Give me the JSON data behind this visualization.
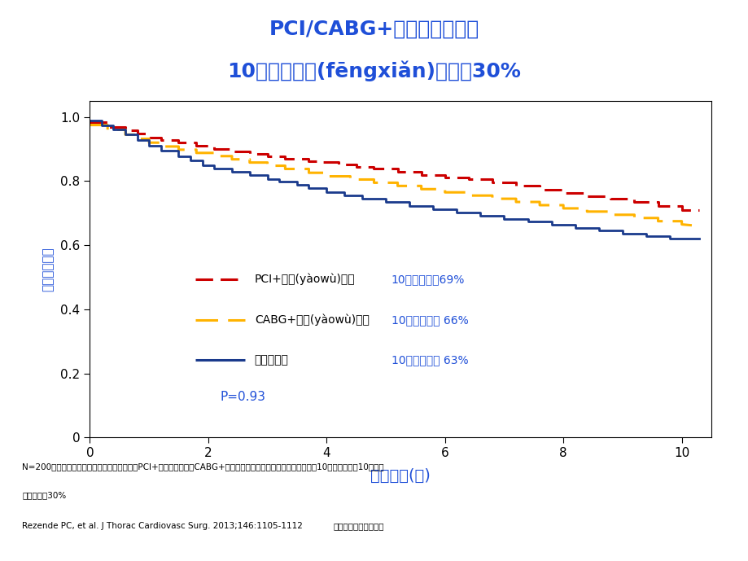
{
  "title_line1": "PCI/CABG+最佳药物治疗后",
  "title_line2": "10年死亡风险(fēngxiǎn)仍超过30%",
  "title_color": "#1F4FD8",
  "xlabel": "随访时间(年)",
  "ylabel": "无事件生存率",
  "xlabel_color": "#1F4FD8",
  "ylabel_color": "#1F4FD8",
  "xlim": [
    0,
    10.5
  ],
  "ylim": [
    0,
    1.05
  ],
  "xticks": [
    0,
    2,
    4,
    6,
    8,
    10
  ],
  "yticks": [
    0,
    0.2,
    0.4,
    0.6,
    0.8,
    1.0
  ],
  "background_color": "#FFFFFF",
  "plot_bg_color": "#FFFFFF",
  "pci_x": [
    0.0,
    0.3,
    0.3,
    0.6,
    0.6,
    0.8,
    0.8,
    1.0,
    1.0,
    1.2,
    1.2,
    1.5,
    1.5,
    1.8,
    1.8,
    2.1,
    2.1,
    2.4,
    2.4,
    2.7,
    2.7,
    3.0,
    3.0,
    3.3,
    3.3,
    3.7,
    3.7,
    3.9,
    3.9,
    4.2,
    4.2,
    4.5,
    4.5,
    4.8,
    4.8,
    5.2,
    5.2,
    5.6,
    5.6,
    6.0,
    6.0,
    6.4,
    6.4,
    6.8,
    6.8,
    7.2,
    7.2,
    7.6,
    7.6,
    8.0,
    8.0,
    8.4,
    8.4,
    8.8,
    8.8,
    9.2,
    9.2,
    9.6,
    9.6,
    10.0,
    10.0,
    10.3
  ],
  "pci_y": [
    0.984,
    0.984,
    0.97,
    0.97,
    0.958,
    0.958,
    0.948,
    0.948,
    0.937,
    0.937,
    0.928,
    0.928,
    0.92,
    0.92,
    0.91,
    0.91,
    0.9,
    0.9,
    0.892,
    0.892,
    0.885,
    0.885,
    0.877,
    0.877,
    0.87,
    0.87,
    0.863,
    0.863,
    0.86,
    0.86,
    0.852,
    0.852,
    0.845,
    0.845,
    0.838,
    0.838,
    0.83,
    0.83,
    0.82,
    0.82,
    0.812,
    0.812,
    0.805,
    0.805,
    0.796,
    0.796,
    0.785,
    0.785,
    0.774,
    0.774,
    0.764,
    0.764,
    0.754,
    0.754,
    0.744,
    0.744,
    0.734,
    0.734,
    0.722,
    0.722,
    0.71,
    0.71
  ],
  "cabg_x": [
    0.0,
    0.3,
    0.3,
    0.6,
    0.6,
    0.8,
    0.8,
    1.0,
    1.0,
    1.2,
    1.2,
    1.5,
    1.5,
    1.8,
    1.8,
    2.1,
    2.1,
    2.4,
    2.4,
    2.7,
    2.7,
    3.0,
    3.0,
    3.3,
    3.3,
    3.7,
    3.7,
    4.0,
    4.0,
    4.4,
    4.4,
    4.8,
    4.8,
    5.2,
    5.2,
    5.6,
    5.6,
    6.0,
    6.0,
    6.4,
    6.4,
    6.8,
    6.8,
    7.2,
    7.2,
    7.6,
    7.6,
    8.0,
    8.0,
    8.4,
    8.4,
    8.8,
    8.8,
    9.2,
    9.2,
    9.6,
    9.6,
    10.0,
    10.0,
    10.3
  ],
  "cabg_y": [
    0.975,
    0.975,
    0.96,
    0.96,
    0.945,
    0.945,
    0.932,
    0.932,
    0.92,
    0.92,
    0.908,
    0.908,
    0.898,
    0.898,
    0.888,
    0.888,
    0.878,
    0.878,
    0.868,
    0.868,
    0.858,
    0.858,
    0.848,
    0.848,
    0.838,
    0.838,
    0.826,
    0.826,
    0.815,
    0.815,
    0.805,
    0.805,
    0.795,
    0.795,
    0.785,
    0.785,
    0.775,
    0.775,
    0.765,
    0.765,
    0.755,
    0.755,
    0.745,
    0.745,
    0.735,
    0.735,
    0.725,
    0.725,
    0.715,
    0.715,
    0.705,
    0.705,
    0.695,
    0.695,
    0.685,
    0.685,
    0.675,
    0.675,
    0.665,
    0.66
  ],
  "med_x": [
    0.0,
    0.2,
    0.2,
    0.4,
    0.4,
    0.6,
    0.6,
    0.8,
    0.8,
    1.0,
    1.0,
    1.2,
    1.2,
    1.5,
    1.5,
    1.7,
    1.7,
    1.9,
    1.9,
    2.1,
    2.1,
    2.4,
    2.4,
    2.7,
    2.7,
    3.0,
    3.0,
    3.2,
    3.2,
    3.5,
    3.5,
    3.7,
    3.7,
    4.0,
    4.0,
    4.3,
    4.3,
    4.6,
    4.6,
    5.0,
    5.0,
    5.4,
    5.4,
    5.8,
    5.8,
    6.2,
    6.2,
    6.6,
    6.6,
    7.0,
    7.0,
    7.4,
    7.4,
    7.8,
    7.8,
    8.2,
    8.2,
    8.6,
    8.6,
    9.0,
    9.0,
    9.4,
    9.4,
    9.8,
    9.8,
    10.2,
    10.2,
    10.3
  ],
  "med_y": [
    0.99,
    0.99,
    0.975,
    0.975,
    0.96,
    0.96,
    0.945,
    0.945,
    0.928,
    0.928,
    0.91,
    0.91,
    0.895,
    0.895,
    0.878,
    0.878,
    0.865,
    0.865,
    0.85,
    0.85,
    0.84,
    0.84,
    0.828,
    0.828,
    0.818,
    0.818,
    0.805,
    0.805,
    0.798,
    0.798,
    0.788,
    0.788,
    0.778,
    0.778,
    0.766,
    0.766,
    0.756,
    0.756,
    0.745,
    0.745,
    0.734,
    0.734,
    0.723,
    0.723,
    0.713,
    0.713,
    0.703,
    0.703,
    0.693,
    0.693,
    0.683,
    0.683,
    0.673,
    0.673,
    0.663,
    0.663,
    0.654,
    0.654,
    0.645,
    0.645,
    0.636,
    0.636,
    0.628,
    0.628,
    0.622,
    0.622,
    0.62,
    0.62
  ],
  "pci_color": "#CC0000",
  "cabg_color": "#FFB300",
  "med_color": "#1A3A8C",
  "legend_pci": "PCI+药物(yàowù)治疗",
  "legend_cabg": "CABG+药物(yàowù)治疗",
  "legend_med": "仅药物治疗",
  "legend_pci_survival": "10年总生存率69%",
  "legend_cabg_survival": "10年总生存率 66%",
  "legend_med_survival": "10年总生存率 63%",
  "pvalue_text": "P=0.93",
  "pvalue_color": "#1F4FD8",
  "footnote1": "N=200，稳定性多支冠脉病变患者，随机分入PCI+最佳药物治疗、CABG+最佳药物治疗或仅最佳药物治疗组。随访10年。三组患者10年死亡",
  "footnote2": "风险均超过30%",
  "footnote3": "Rezende PC, et al. J Thorac Cardiovasc Surg. 2013;146:1105-1112",
  "footnote4": "第三页，共三十八页。"
}
